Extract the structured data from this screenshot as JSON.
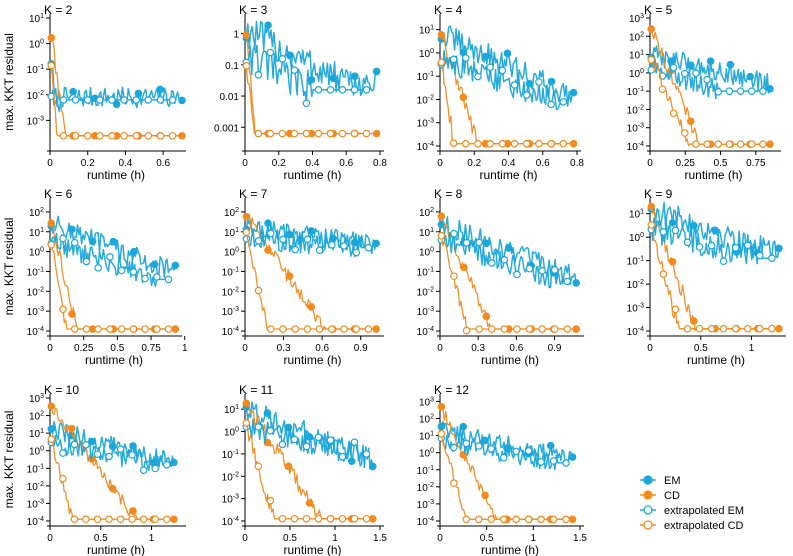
{
  "colors": {
    "EM": "#1aa7d9",
    "CD": "#f28a1e",
    "axis": "#000000"
  },
  "legend": [
    {
      "label": "EM",
      "marker": "filled",
      "color": "#1aa7d9"
    },
    {
      "label": "CD",
      "marker": "filled",
      "color": "#f28a1e"
    },
    {
      "label": "extrapolated EM",
      "marker": "open",
      "color": "#1aa7d9"
    },
    {
      "label": "extrapolated CD",
      "marker": "open",
      "color": "#f28a1e"
    }
  ],
  "chart_data": [
    {
      "type": "line",
      "title": "K = 2",
      "xlabel": "runtime (h)",
      "ylabel": "max. KKT residual",
      "xlim": [
        0,
        0.7
      ],
      "ylim_log10": [
        -4,
        1
      ],
      "xticks": [
        "0",
        "0.2",
        "0.4",
        "0.6"
      ],
      "yticks": [
        "10^-3",
        "10^-2",
        "10^-1",
        "10^0",
        "10^1"
      ],
      "y_tick_format": "power",
      "series": [
        {
          "method": "EM",
          "start_log10": -0.5,
          "end_log10": -2.1,
          "conv_x": 0.02,
          "end_x": 0.7
        },
        {
          "method": "CD",
          "start_log10": 0.4,
          "end_log10": -3.6,
          "conv_x": 0.08,
          "end_x": 0.7
        },
        {
          "method": "extrapolated EM",
          "start_log10": -1.8,
          "end_log10": -2.2,
          "conv_x": 0.05,
          "end_x": 0.65
        },
        {
          "method": "extrapolated CD",
          "start_log10": -0.7,
          "end_log10": -3.6,
          "conv_x": 0.04,
          "end_x": 0.65
        }
      ]
    },
    {
      "type": "line",
      "title": "K = 3",
      "xlabel": "runtime (h)",
      "ylabel": "",
      "xlim": [
        0,
        0.8
      ],
      "ylim_log10": [
        -3.6,
        0.5
      ],
      "xticks": [
        "0",
        "0.2",
        "0.4",
        "0.6",
        "0.8"
      ],
      "yticks": [
        "0.001",
        "0.01",
        "0.1",
        "1"
      ],
      "y_tick_format": "decimal",
      "series": [
        {
          "method": "EM",
          "start_log10": 0.1,
          "end_log10": -1.6,
          "conv_x": 0.6,
          "end_x": 0.78
        },
        {
          "method": "CD",
          "start_log10": 0.1,
          "end_log10": -3.2,
          "conv_x": 0.06,
          "end_x": 0.78
        },
        {
          "method": "extrapolated EM",
          "start_log10": -0.7,
          "end_log10": -1.8,
          "conv_x": 0.4,
          "end_x": 0.72
        },
        {
          "method": "extrapolated CD",
          "start_log10": -0.9,
          "end_log10": -3.2,
          "conv_x": 0.05,
          "end_x": 0.72
        }
      ]
    },
    {
      "type": "line",
      "title": "K = 4",
      "xlabel": "runtime (h)",
      "ylabel": "",
      "xlim": [
        0,
        0.8
      ],
      "ylim_log10": [
        -4,
        1.5
      ],
      "xticks": [
        "0",
        "0.2",
        "0.4",
        "0.6",
        "0.8"
      ],
      "yticks": [
        "10^-4",
        "10^-3",
        "10^-2",
        "10^-1",
        "10^0",
        "10^1"
      ],
      "y_tick_format": "power",
      "series": [
        {
          "method": "EM",
          "start_log10": 0.8,
          "end_log10": -1.8,
          "conv_x": 0.75,
          "end_x": 0.78
        },
        {
          "method": "CD",
          "start_log10": 0.9,
          "end_log10": -3.9,
          "conv_x": 0.22,
          "end_x": 0.78
        },
        {
          "method": "extrapolated EM",
          "start_log10": -0.3,
          "end_log10": -2.1,
          "conv_x": 0.7,
          "end_x": 0.72
        },
        {
          "method": "extrapolated CD",
          "start_log10": -0.3,
          "end_log10": -3.9,
          "conv_x": 0.08,
          "end_x": 0.72
        }
      ]
    },
    {
      "type": "line",
      "title": "K = 5",
      "xlabel": "runtime (h)",
      "ylabel": "",
      "xlim": [
        0,
        0.9
      ],
      "ylim_log10": [
        -4,
        3
      ],
      "xticks": [
        "0",
        "0.25",
        "0.5",
        "0.75"
      ],
      "yticks": [
        "10^-4",
        "10^-3",
        "10^-2",
        "10^-1",
        "10^0",
        "10^1",
        "10^2",
        "10^3"
      ],
      "y_tick_format": "power",
      "series": [
        {
          "method": "EM",
          "start_log10": 1.0,
          "end_log10": -0.6,
          "conv_x": 0.85,
          "end_x": 0.85
        },
        {
          "method": "CD",
          "start_log10": 2.5,
          "end_log10": -3.9,
          "conv_x": 0.35,
          "end_x": 0.85
        },
        {
          "method": "extrapolated EM",
          "start_log10": 0.3,
          "end_log10": -1.0,
          "conv_x": 0.5,
          "end_x": 0.8
        },
        {
          "method": "extrapolated CD",
          "start_log10": 0.8,
          "end_log10": -3.9,
          "conv_x": 0.28,
          "end_x": 0.8
        }
      ]
    },
    {
      "type": "line",
      "title": "K = 6",
      "xlabel": "runtime (h)",
      "ylabel": "max. KKT residual",
      "xlim": [
        0,
        0.95
      ],
      "ylim_log10": [
        -4,
        2.5
      ],
      "xticks": [
        "0",
        "0.25",
        "0.5",
        "0.75",
        "1"
      ],
      "yticks": [
        "10^-4",
        "10^-3",
        "10^-2",
        "10^-1",
        "10^0",
        "10^1",
        "10^2"
      ],
      "y_tick_format": "power",
      "series": [
        {
          "method": "EM",
          "start_log10": 1.4,
          "end_log10": -1.0,
          "conv_x": 0.9,
          "end_x": 0.93
        },
        {
          "method": "CD",
          "start_log10": 1.5,
          "end_log10": -3.9,
          "conv_x": 0.2,
          "end_x": 0.93
        },
        {
          "method": "extrapolated EM",
          "start_log10": 0.5,
          "end_log10": -1.4,
          "conv_x": 0.8,
          "end_x": 0.88
        },
        {
          "method": "extrapolated CD",
          "start_log10": 0.4,
          "end_log10": -3.9,
          "conv_x": 0.12,
          "end_x": 0.88
        }
      ]
    },
    {
      "type": "line",
      "title": "K = 7",
      "xlabel": "runtime (h)",
      "ylabel": "",
      "xlim": [
        0,
        1.05
      ],
      "ylim_log10": [
        -4,
        2.5
      ],
      "xticks": [
        "0",
        "0.3",
        "0.6",
        "0.9"
      ],
      "yticks": [
        "10^-4",
        "10^-3",
        "10^-2",
        "10^-1",
        "10^0",
        "10^1",
        "10^2"
      ],
      "y_tick_format": "power",
      "series": [
        {
          "method": "EM",
          "start_log10": 1.2,
          "end_log10": 0.4,
          "conv_x": 1.0,
          "end_x": 1.02
        },
        {
          "method": "CD",
          "start_log10": 1.8,
          "end_log10": -3.9,
          "conv_x": 0.62,
          "end_x": 1.02
        },
        {
          "method": "extrapolated EM",
          "start_log10": 0.7,
          "end_log10": 0.2,
          "conv_x": 0.9,
          "end_x": 0.96
        },
        {
          "method": "extrapolated CD",
          "start_log10": 1.0,
          "end_log10": -3.9,
          "conv_x": 0.18,
          "end_x": 0.96
        }
      ]
    },
    {
      "type": "line",
      "title": "K = 8",
      "xlabel": "runtime (h)",
      "ylabel": "",
      "xlim": [
        0,
        1.1
      ],
      "ylim_log10": [
        -4,
        2.5
      ],
      "xticks": [
        "0",
        "0.3",
        "0.6",
        "0.9"
      ],
      "yticks": [
        "10^-4",
        "10^-3",
        "10^-2",
        "10^-1",
        "10^0",
        "10^1",
        "10^2"
      ],
      "y_tick_format": "power",
      "series": [
        {
          "method": "EM",
          "start_log10": 1.4,
          "end_log10": -1.3,
          "conv_x": 1.05,
          "end_x": 1.07
        },
        {
          "method": "CD",
          "start_log10": 1.8,
          "end_log10": -3.9,
          "conv_x": 0.4,
          "end_x": 1.07
        },
        {
          "method": "extrapolated EM",
          "start_log10": 0.6,
          "end_log10": -1.5,
          "conv_x": 0.95,
          "end_x": 1.0
        },
        {
          "method": "extrapolated CD",
          "start_log10": 0.8,
          "end_log10": -3.9,
          "conv_x": 0.22,
          "end_x": 1.0
        }
      ]
    },
    {
      "type": "line",
      "title": "K = 9",
      "xlabel": "runtime (h)",
      "ylabel": "",
      "xlim": [
        0,
        1.3
      ],
      "ylim_log10": [
        -4,
        1.5
      ],
      "xticks": [
        "0",
        "0.5",
        "1"
      ],
      "yticks": [
        "10^-4",
        "10^-3",
        "10^-2",
        "10^-1",
        "10^0",
        "10^1"
      ],
      "y_tick_format": "power",
      "series": [
        {
          "method": "EM",
          "start_log10": 1.2,
          "end_log10": -0.7,
          "conv_x": 1.25,
          "end_x": 1.27
        },
        {
          "method": "CD",
          "start_log10": 1.3,
          "end_log10": -3.9,
          "conv_x": 0.45,
          "end_x": 1.27
        },
        {
          "method": "extrapolated EM",
          "start_log10": 0.3,
          "end_log10": -0.9,
          "conv_x": 1.1,
          "end_x": 1.2
        },
        {
          "method": "extrapolated CD",
          "start_log10": 0.5,
          "end_log10": -3.9,
          "conv_x": 0.28,
          "end_x": 1.2
        }
      ]
    },
    {
      "type": "line",
      "title": "K = 10",
      "xlabel": "runtime (h)",
      "ylabel": "max. KKT residual",
      "xlim": [
        0,
        1.3
      ],
      "ylim_log10": [
        -4,
        3
      ],
      "xticks": [
        "0",
        "0.5",
        "1"
      ],
      "yticks": [
        "10^-4",
        "10^-3",
        "10^-2",
        "10^-1",
        "10^0",
        "10^1",
        "10^2",
        "10^3"
      ],
      "y_tick_format": "power",
      "series": [
        {
          "method": "EM",
          "start_log10": 1.2,
          "end_log10": -0.6,
          "conv_x": 1.2,
          "end_x": 1.22
        },
        {
          "method": "CD",
          "start_log10": 2.5,
          "end_log10": -3.9,
          "conv_x": 0.85,
          "end_x": 1.22
        },
        {
          "method": "extrapolated EM",
          "start_log10": 0.4,
          "end_log10": -0.8,
          "conv_x": 1.1,
          "end_x": 1.15
        },
        {
          "method": "extrapolated CD",
          "start_log10": 0.6,
          "end_log10": -3.9,
          "conv_x": 0.22,
          "end_x": 1.15
        }
      ]
    },
    {
      "type": "line",
      "title": "K = 11",
      "xlabel": "runtime (h)",
      "ylabel": "",
      "xlim": [
        0,
        1.5
      ],
      "ylim_log10": [
        -4,
        1.5
      ],
      "xticks": [
        "0",
        "0.5",
        "1",
        "1.5"
      ],
      "yticks": [
        "10^-4",
        "10^-3",
        "10^-2",
        "10^-1",
        "10^0",
        "10^1"
      ],
      "y_tick_format": "power",
      "series": [
        {
          "method": "EM",
          "start_log10": 1.0,
          "end_log10": -1.2,
          "conv_x": 1.4,
          "end_x": 1.42
        },
        {
          "method": "CD",
          "start_log10": 1.2,
          "end_log10": -3.9,
          "conv_x": 0.85,
          "end_x": 1.42
        },
        {
          "method": "extrapolated EM",
          "start_log10": 0.1,
          "end_log10": -1.0,
          "conv_x": 1.3,
          "end_x": 1.35
        },
        {
          "method": "extrapolated CD",
          "start_log10": 0.3,
          "end_log10": -3.9,
          "conv_x": 0.32,
          "end_x": 1.35
        }
      ]
    },
    {
      "type": "line",
      "title": "K = 12",
      "xlabel": "runtime (h)",
      "ylabel": "",
      "xlim": [
        0,
        1.5
      ],
      "ylim_log10": [
        -4,
        3.2
      ],
      "xticks": [
        "0",
        "0.5",
        "1",
        "1.5"
      ],
      "yticks": [
        "10^-4",
        "10^-3",
        "10^-2",
        "10^-1",
        "10^0",
        "10^1",
        "10^2",
        "10^3"
      ],
      "y_tick_format": "power",
      "series": [
        {
          "method": "EM",
          "start_log10": 1.4,
          "end_log10": -0.4,
          "conv_x": 1.4,
          "end_x": 1.42
        },
        {
          "method": "CD",
          "start_log10": 2.6,
          "end_log10": -3.9,
          "conv_x": 0.6,
          "end_x": 1.42
        },
        {
          "method": "extrapolated EM",
          "start_log10": 0.7,
          "end_log10": -0.6,
          "conv_x": 1.25,
          "end_x": 1.35
        },
        {
          "method": "extrapolated CD",
          "start_log10": 1.0,
          "end_log10": -3.9,
          "conv_x": 0.28,
          "end_x": 1.35
        }
      ]
    }
  ]
}
